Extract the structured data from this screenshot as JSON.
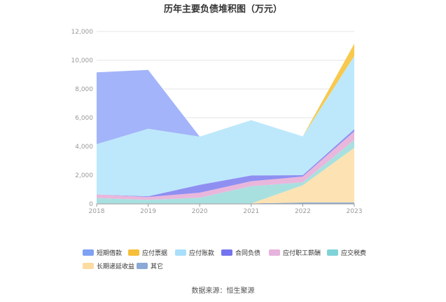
{
  "chart_data": {
    "type": "area",
    "stacked": true,
    "title": "历年主要负债堆积图（万元）",
    "x": [
      "2018",
      "2019",
      "2020",
      "2021",
      "2022",
      "2023"
    ],
    "ylim": [
      0,
      12000
    ],
    "yticks": [
      "0",
      "2,000",
      "4,000",
      "6,000",
      "8,000",
      "10,000",
      "12,000"
    ],
    "grid": true,
    "legend_position": "bottom",
    "series": [
      {
        "name": "其它",
        "color": "#8fb0d9",
        "values": [
          30,
          30,
          30,
          30,
          100,
          100
        ]
      },
      {
        "name": "长期递延收益",
        "color": "#fde2b3",
        "values": [
          0,
          0,
          0,
          0,
          1200,
          3800
        ]
      },
      {
        "name": "应交税费",
        "color": "#a8e0e0",
        "values": [
          380,
          250,
          400,
          1200,
          200,
          550
        ]
      },
      {
        "name": "应付职工薪酬",
        "color": "#e9b7dc",
        "values": [
          250,
          200,
          350,
          350,
          400,
          600
        ]
      },
      {
        "name": "合同负债",
        "color": "#8f8ff2",
        "values": [
          0,
          50,
          550,
          400,
          100,
          150
        ]
      },
      {
        "name": "应付账款",
        "color": "#bde8fb",
        "values": [
          3500,
          4700,
          3350,
          3850,
          2700,
          5100
        ]
      },
      {
        "name": "应付票据",
        "color": "#f8c94d",
        "values": [
          0,
          0,
          0,
          0,
          0,
          850
        ]
      },
      {
        "name": "短期借款",
        "color": "#a3b4fa",
        "values": [
          5000,
          4100,
          0,
          0,
          0,
          0
        ]
      }
    ],
    "legend": [
      {
        "name": "短期借款",
        "color": "#7ea0f5"
      },
      {
        "name": "应付票据",
        "color": "#f7be3a"
      },
      {
        "name": "应付账款",
        "color": "#a9dffa"
      },
      {
        "name": "合同负债",
        "color": "#7474ee"
      },
      {
        "name": "应付职工薪酬",
        "color": "#e6b3de"
      },
      {
        "name": "应交税费",
        "color": "#7fd3d8"
      },
      {
        "name": "长期递延收益",
        "color": "#fddca2"
      },
      {
        "name": "其它",
        "color": "#8aa9d6"
      }
    ],
    "source": "数据来源：恒生聚源"
  }
}
